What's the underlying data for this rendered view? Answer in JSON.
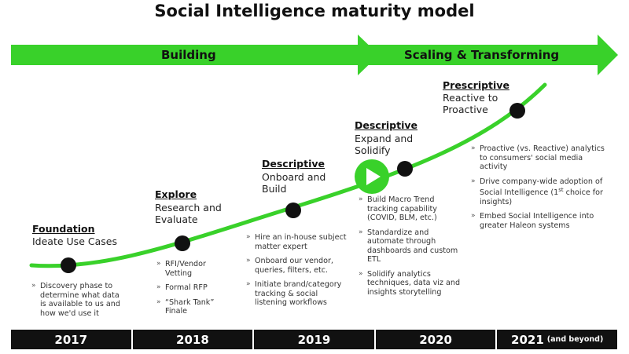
{
  "title": "Social Intelligence maturity model",
  "phases": [
    {
      "label": "Building"
    },
    {
      "label": "Scaling & Transforming"
    }
  ],
  "colors": {
    "accent": "#39d12a",
    "dark": "#111111",
    "text": "#222222"
  },
  "stages": [
    {
      "heading": "Foundation",
      "subtitle": [
        "Ideate Use Cases"
      ],
      "bullets": [
        "Discovery phase to determine what data is available to us and how we'd use it"
      ]
    },
    {
      "heading": "Explore",
      "subtitle": [
        "Research and",
        "Evaluate"
      ],
      "bullets": [
        "RFI/Vendor Vetting",
        "Formal RFP",
        "“Shark Tank” Finale"
      ]
    },
    {
      "heading": "Descriptive",
      "subtitle": [
        "Onboard and",
        "Build"
      ],
      "bullets": [
        "Hire an in-house subject matter expert",
        "Onboard our vendor, queries, filters, etc.",
        "Initiate brand/category tracking & social listening workflows"
      ]
    },
    {
      "heading": "Descriptive",
      "subtitle": [
        "Expand and",
        "Solidify"
      ],
      "bullets": [
        "Build Macro Trend tracking capability (COVID, BLM, etc.)",
        "Standardize and automate through dashboards and custom ETL",
        "Solidify analytics techniques, data viz and insights storytelling"
      ]
    },
    {
      "heading": "Prescriptive",
      "subtitle": [
        "Reactive to",
        "Proactive"
      ],
      "bullets": [
        "Proactive (vs. Reactive) analytics to consumers' social media activity",
        "Drive company-wide adoption of Social Intelligence (1st choice for insights)",
        "Embed Social Intelligence into greater Haleon systems"
      ]
    }
  ],
  "years": [
    {
      "label": "2017",
      "note": ""
    },
    {
      "label": "2018",
      "note": ""
    },
    {
      "label": "2019",
      "note": ""
    },
    {
      "label": "2020",
      "note": ""
    },
    {
      "label": "2021",
      "note": "(and beyond)"
    }
  ],
  "play_icon": "play-icon"
}
